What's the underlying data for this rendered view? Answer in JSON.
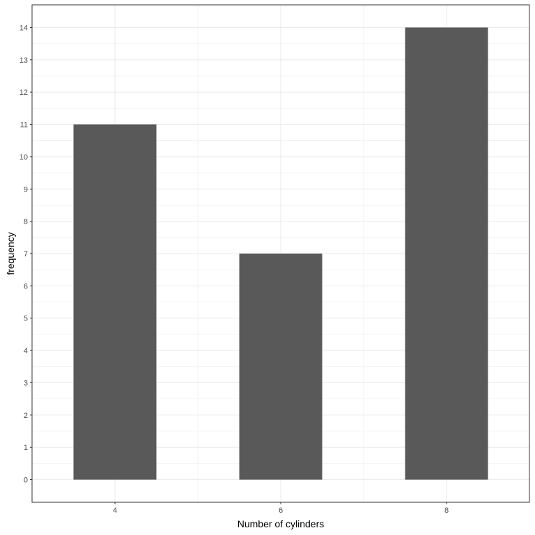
{
  "chart_data": {
    "type": "bar",
    "categories": [
      "4",
      "6",
      "8"
    ],
    "values": [
      11,
      7,
      14
    ],
    "xlabel": "Number of cylinders",
    "ylabel": "frequency",
    "ylim": [
      -0.7,
      14.7
    ],
    "xlim": [
      3,
      9
    ],
    "y_ticks": [
      0,
      1,
      2,
      3,
      4,
      5,
      6,
      7,
      8,
      9,
      10,
      11,
      12,
      13,
      14
    ],
    "x_ticks": [
      4,
      6,
      8
    ],
    "bar_color": "#595959",
    "grid": true,
    "grid_color": "#ebebeb",
    "panel_border_color": "#333333",
    "legend": "none"
  }
}
